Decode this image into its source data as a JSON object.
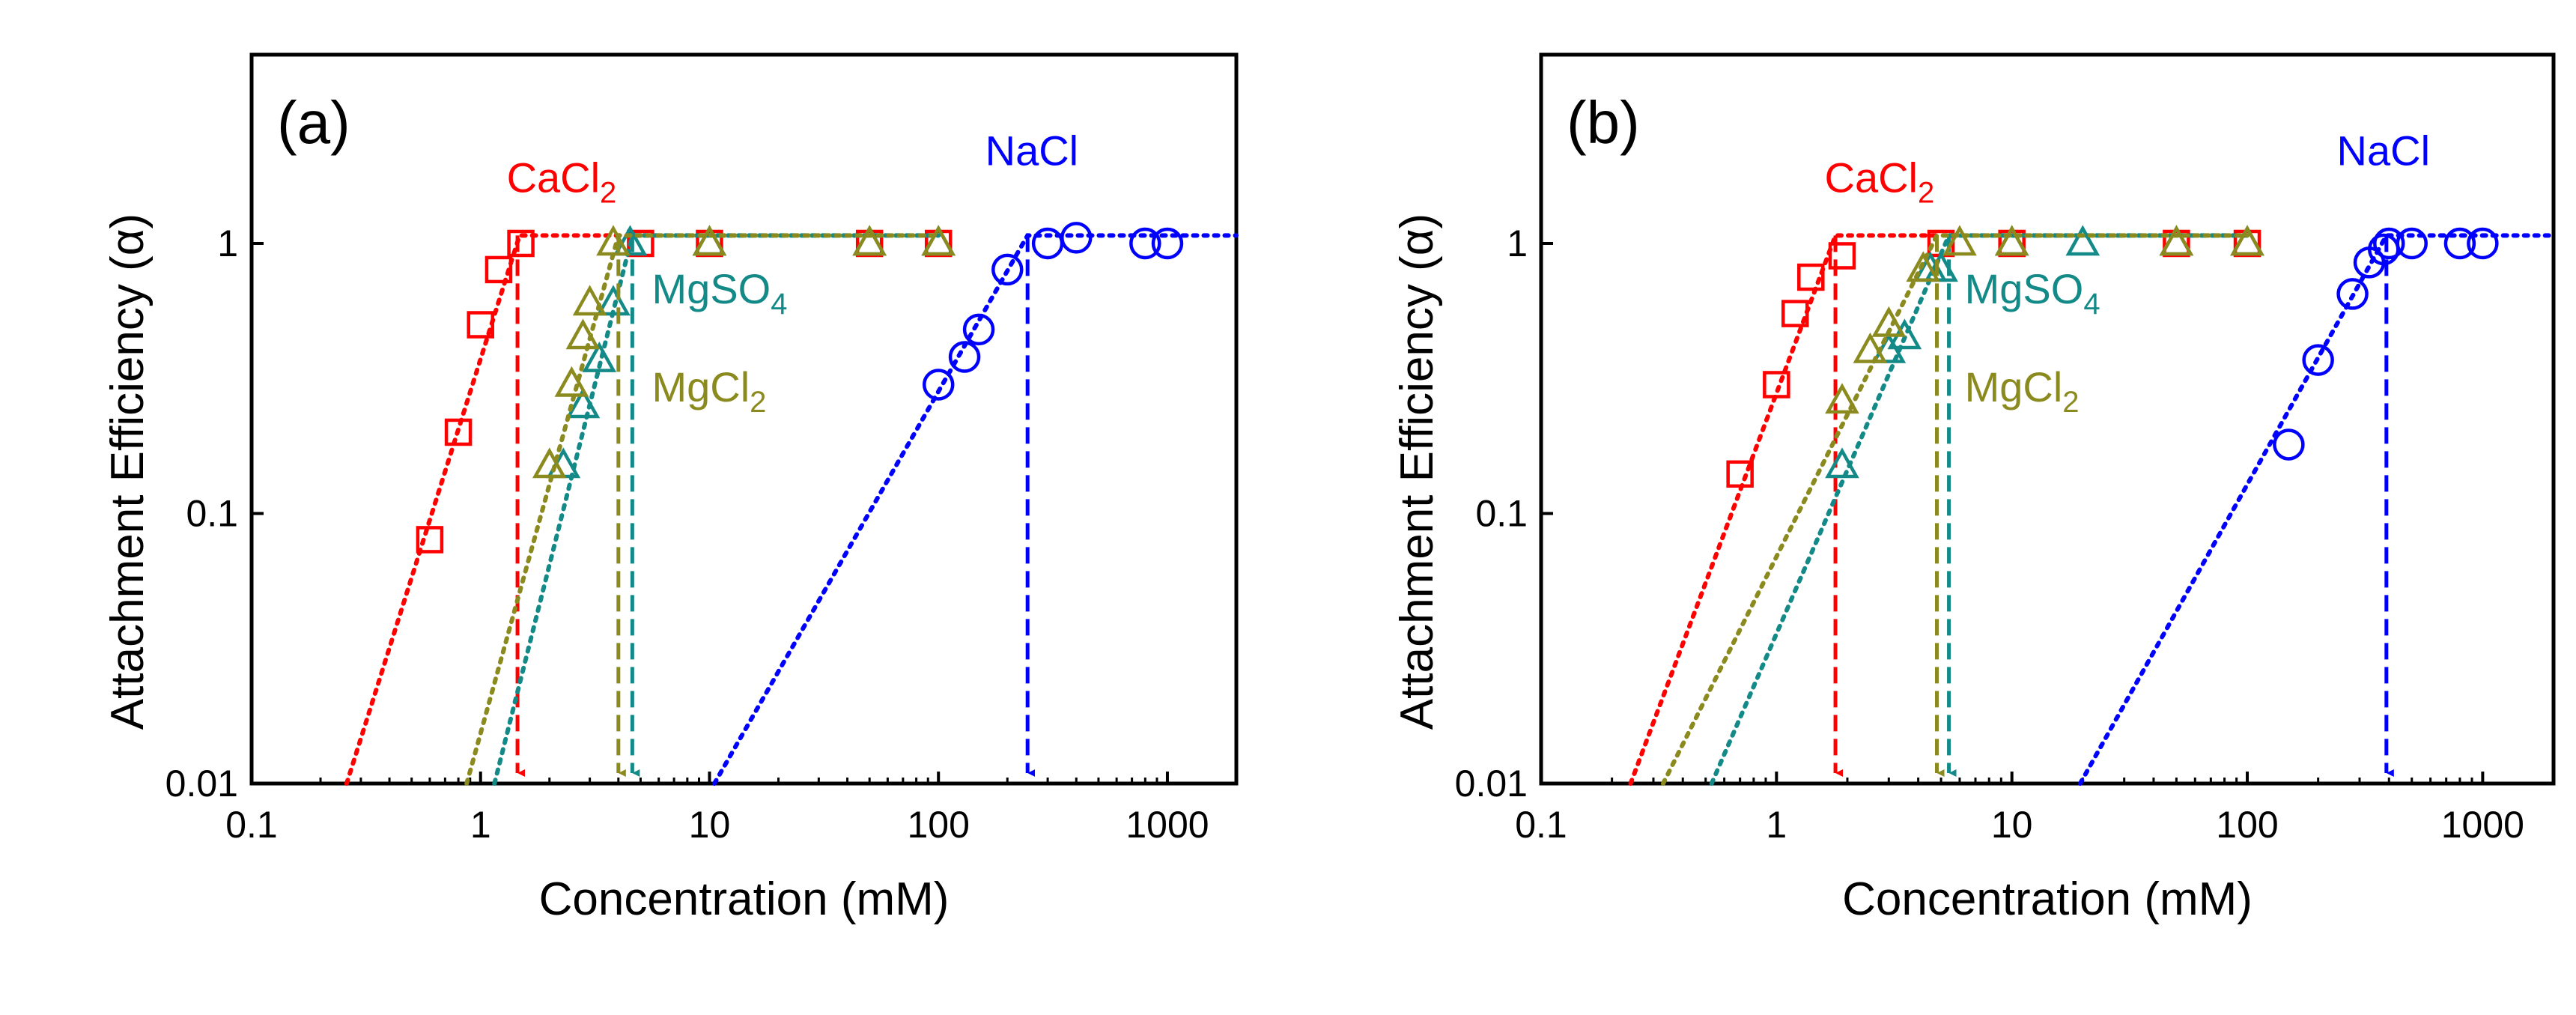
{
  "chart_data": [
    {
      "type": "scatter",
      "panel_label": "(a)",
      "xlabel": "Concentration (mM)",
      "ylabel": "Attachment Efficiency (α)",
      "xscale": "log",
      "yscale": "log",
      "xlim": [
        0.1,
        2000
      ],
      "ylim": [
        0.01,
        5
      ],
      "xticks": [
        "0.1",
        "1",
        "10",
        "100",
        "1000"
      ],
      "yticks": [
        "0.01",
        "0.1",
        "1"
      ],
      "series": [
        {
          "name": "CaCl2",
          "label_main": "CaCl",
          "label_sub": "2",
          "color": "#ff0000",
          "marker": "square",
          "x": [
            0.6,
            0.8,
            1.0,
            1.2,
            1.5,
            5,
            10,
            50,
            100
          ],
          "y": [
            0.08,
            0.2,
            0.5,
            0.8,
            1.0,
            1.0,
            1.0,
            1.0,
            1.0
          ],
          "fit": [
            [
              0.26,
              0.01
            ],
            [
              1.48,
              1.07
            ],
            [
              5,
              1.07
            ]
          ],
          "ccc": 1.45,
          "label_at": [
            1.3,
            1.55
          ]
        },
        {
          "name": "MgSO4",
          "label_main": "MgSO",
          "label_sub": "4",
          "color": "#138a87",
          "marker": "triangle",
          "x": [
            2.3,
            2.8,
            3.3,
            3.8,
            4.5,
            10,
            50,
            100
          ],
          "y": [
            0.15,
            0.25,
            0.37,
            0.6,
            1.0,
            1.0,
            1.0,
            1.0
          ],
          "fit": [
            [
              1.15,
              0.01
            ],
            [
              4.6,
              1.07
            ],
            [
              100,
              1.07
            ]
          ],
          "ccc": 4.6,
          "label_at": [
            5.6,
            0.6
          ]
        },
        {
          "name": "MgCl2",
          "label_main": "MgCl",
          "label_sub": "2",
          "color": "#8a8a1e",
          "marker": "triangle",
          "x": [
            2.0,
            2.5,
            2.8,
            3.0,
            3.8,
            10,
            50,
            100
          ],
          "y": [
            0.15,
            0.3,
            0.45,
            0.6,
            1.0,
            1.0,
            1.0,
            1.0
          ],
          "fit": [
            [
              0.87,
              0.01
            ],
            [
              4.0,
              1.07
            ],
            [
              100,
              1.07
            ]
          ],
          "ccc": 4.0,
          "label_at": [
            5.6,
            0.26
          ]
        },
        {
          "name": "NaCl",
          "label_main": "NaCl",
          "label_sub": "",
          "color": "#0000ff",
          "marker": "circle",
          "x": [
            100,
            130,
            150,
            200,
            300,
            400,
            800,
            1000
          ],
          "y": [
            0.3,
            0.38,
            0.48,
            0.8,
            1.0,
            1.05,
            1.0,
            1.0
          ],
          "fit": [
            [
              10.5,
              0.01
            ],
            [
              245,
              1.07
            ],
            [
              2000,
              1.07
            ]
          ],
          "ccc": 245,
          "label_at": [
            160,
            1.95
          ]
        }
      ]
    },
    {
      "type": "scatter",
      "panel_label": "(b)",
      "xlabel": "Concentration (mM)",
      "ylabel": "Attachment Efficiency (α)",
      "xscale": "log",
      "yscale": "log",
      "xlim": [
        0.1,
        2000
      ],
      "ylim": [
        0.01,
        5
      ],
      "xticks": [
        "0.1",
        "1",
        "10",
        "100",
        "1000"
      ],
      "yticks": [
        "0.01",
        "0.1",
        "1"
      ],
      "series": [
        {
          "name": "CaCl2",
          "label_main": "CaCl",
          "label_sub": "2",
          "color": "#ff0000",
          "marker": "square",
          "x": [
            0.7,
            1.0,
            1.2,
            1.4,
            1.9,
            5,
            10,
            50,
            100
          ],
          "y": [
            0.14,
            0.3,
            0.55,
            0.75,
            0.9,
            1.0,
            1.0,
            1.0,
            1.0
          ],
          "fit": [
            [
              0.24,
              0.01
            ],
            [
              1.78,
              1.07
            ],
            [
              5,
              1.07
            ]
          ],
          "ccc": 1.78,
          "label_at": [
            1.6,
            1.55
          ]
        },
        {
          "name": "MgSO4",
          "label_main": "MgSO",
          "label_sub": "4",
          "color": "#138a87",
          "marker": "triangle",
          "x": [
            1.9,
            3.0,
            3.5,
            4.5,
            5.0,
            10,
            20,
            50,
            100
          ],
          "y": [
            0.15,
            0.4,
            0.45,
            0.8,
            0.8,
            1.0,
            1.0,
            1.0,
            1.0
          ],
          "fit": [
            [
              0.53,
              0.01
            ],
            [
              5.4,
              1.07
            ],
            [
              100,
              1.07
            ]
          ],
          "ccc": 5.4,
          "label_at": [
            6.3,
            0.6
          ]
        },
        {
          "name": "MgCl2",
          "label_main": "MgCl",
          "label_sub": "2",
          "color": "#8a8a1e",
          "marker": "triangle",
          "x": [
            1.9,
            2.5,
            3.0,
            4.2,
            6.0,
            10,
            50,
            100
          ],
          "y": [
            0.26,
            0.4,
            0.5,
            0.8,
            1.0,
            1.0,
            1.0,
            1.0
          ],
          "fit": [
            [
              0.33,
              0.01
            ],
            [
              4.8,
              1.07
            ],
            [
              100,
              1.07
            ]
          ],
          "ccc": 4.8,
          "label_at": [
            6.3,
            0.26
          ]
        },
        {
          "name": "NaCl",
          "label_main": "NaCl",
          "label_sub": "",
          "color": "#0000ff",
          "marker": "circle",
          "x": [
            150,
            200,
            280,
            330,
            380,
            400,
            500,
            800,
            1000
          ],
          "y": [
            0.18,
            0.37,
            0.65,
            0.85,
            0.95,
            1.0,
            1.0,
            1.0,
            1.0
          ],
          "fit": [
            [
              19.5,
              0.01
            ],
            [
              390,
              1.07
            ],
            [
              2000,
              1.07
            ]
          ],
          "ccc": 390,
          "label_at": [
            240,
            1.95
          ]
        }
      ]
    }
  ]
}
